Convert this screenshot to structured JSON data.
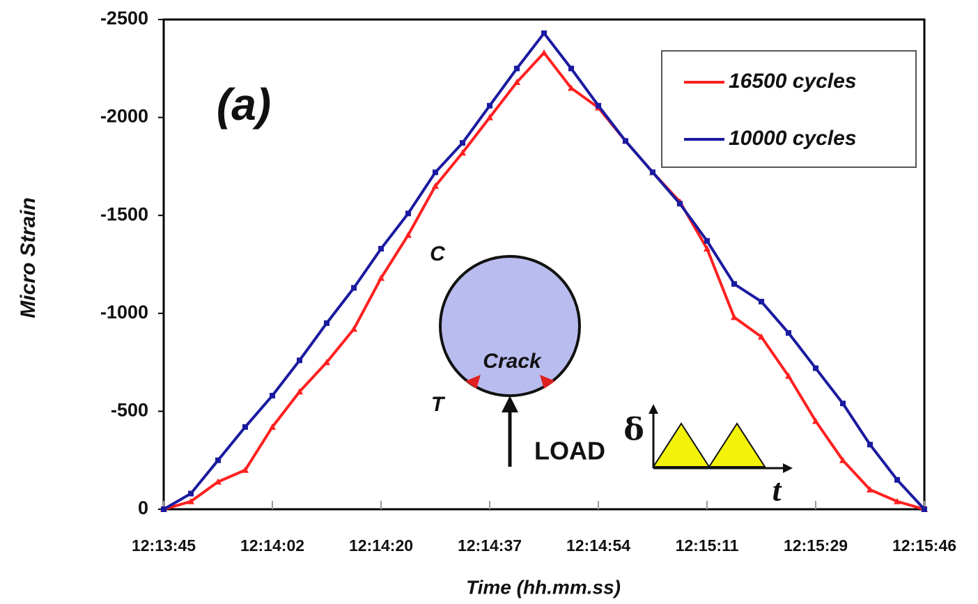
{
  "chart_data": {
    "type": "line",
    "xlabel": "Time (hh.mm.ss)",
    "ylabel": "Micro Strain",
    "annotations": [
      "(a)",
      "C",
      "T",
      "Crack",
      "LOAD",
      "δ",
      "t"
    ],
    "x": [
      0,
      0.25,
      0.5,
      0.75,
      1,
      1.25,
      1.5,
      1.75,
      2,
      2.25,
      2.5,
      2.75,
      3,
      3.25,
      3.5,
      3.75,
      4,
      4.25,
      4.5,
      4.75,
      5,
      5.25,
      5.5,
      5.75,
      6,
      6.25,
      6.5,
      6.75,
      7
    ],
    "series": [
      {
        "name": "16500 cycles",
        "color": "#ff2020",
        "values": [
          0,
          -40,
          -140,
          -200,
          -420,
          -600,
          -750,
          -920,
          -1180,
          -1400,
          -1650,
          -1820,
          -2000,
          -2180,
          -2330,
          -2150,
          -2050,
          -1880,
          -1720,
          -1570,
          -1330,
          -980,
          -880,
          -680,
          -450,
          -250,
          -100,
          -40,
          0
        ]
      },
      {
        "name": "10000 cycles",
        "color": "#1a1aa0",
        "values": [
          0,
          -80,
          -250,
          -420,
          -580,
          -760,
          -950,
          -1130,
          -1330,
          -1510,
          -1720,
          -1870,
          -2060,
          -2250,
          -2430,
          -2250,
          -2060,
          -1880,
          -1720,
          -1560,
          -1370,
          -1150,
          -1060,
          -900,
          -720,
          -540,
          -330,
          -150,
          0
        ]
      }
    ],
    "xlim": [
      0,
      7
    ],
    "xticks": [
      {
        "value": 0,
        "label": "12:13:45"
      },
      {
        "value": 1,
        "label": "12:14:02"
      },
      {
        "value": 2,
        "label": "12:14:20"
      },
      {
        "value": 3,
        "label": "12:14:37"
      },
      {
        "value": 4,
        "label": "12:14:54"
      },
      {
        "value": 5,
        "label": "12:15:11"
      },
      {
        "value": 6,
        "label": "12:15:29"
      },
      {
        "value": 7,
        "label": "12:15:46"
      }
    ],
    "ylim": [
      0,
      -2500
    ],
    "yticks": [
      0,
      -500,
      -1000,
      -1500,
      -2000,
      -2500
    ],
    "grid": false,
    "legend": "upper right"
  }
}
